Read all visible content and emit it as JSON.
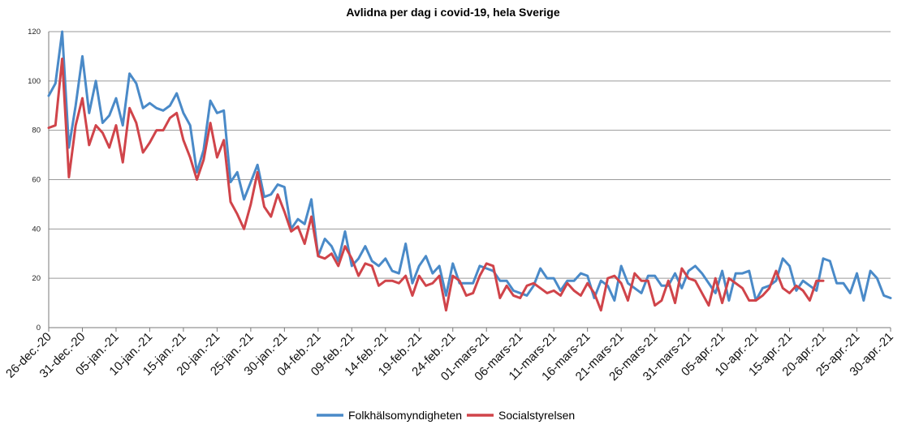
{
  "chart_data": {
    "type": "line",
    "title": "Avlidna per dag i covid-19, hela Sverige",
    "ylim": [
      0,
      120
    ],
    "yticks": [
      0,
      20,
      40,
      60,
      80,
      100,
      120
    ],
    "grid": true,
    "legend_position": "bottom",
    "x_start": "2020-12-26",
    "xtick_labels": [
      "26-dec.-20",
      "31-dec.-20",
      "05-jan.-21",
      "10-jan.-21",
      "15-jan.-21",
      "20-jan.-21",
      "25-jan.-21",
      "30-jan.-21",
      "04-feb.-21",
      "09-feb.-21",
      "14-feb.-21",
      "19-feb.-21",
      "24-feb.-21",
      "01-mars-21",
      "06-mars-21",
      "11-mars-21",
      "16-mars-21",
      "21-mars-21",
      "26-mars-21",
      "31-mars-21",
      "05-apr.-21",
      "10-apr.-21",
      "15-apr.-21",
      "20-apr.-21",
      "25-apr.-21",
      "30-apr.-21"
    ],
    "series": [
      {
        "name": "Folkhälsomyndigheten",
        "color": "#4a8ac8",
        "values": [
          94,
          99,
          120,
          73,
          90,
          110,
          87,
          100,
          83,
          86,
          93,
          82,
          103,
          99,
          89,
          91,
          89,
          88,
          90,
          95,
          87,
          82,
          63,
          72,
          92,
          87,
          88,
          59,
          63,
          52,
          59,
          66,
          53,
          54,
          58,
          57,
          40,
          44,
          42,
          52,
          29,
          36,
          33,
          27,
          39,
          25,
          28,
          33,
          27,
          25,
          28,
          23,
          22,
          34,
          18,
          25,
          29,
          22,
          25,
          13,
          26,
          18,
          18,
          18,
          25,
          24,
          23,
          19,
          19,
          15,
          14,
          13,
          17,
          24,
          20,
          20,
          15,
          19,
          19,
          22,
          21,
          12,
          19,
          17,
          11,
          25,
          18,
          16,
          14,
          21,
          21,
          17,
          17,
          22,
          16,
          23,
          25,
          22,
          18,
          14,
          23,
          11,
          22,
          22,
          23,
          11,
          16,
          17,
          19,
          28,
          25,
          15,
          19,
          17,
          15,
          28,
          27,
          18,
          18,
          14,
          22,
          11,
          23,
          20,
          13,
          12
        ]
      },
      {
        "name": "Socialstyrelsen",
        "color": "#d0444a",
        "values": [
          81,
          82,
          109,
          61,
          82,
          93,
          74,
          82,
          79,
          73,
          82,
          67,
          89,
          83,
          71,
          75,
          80,
          80,
          85,
          87,
          76,
          69,
          60,
          68,
          83,
          69,
          76,
          51,
          46,
          40,
          50,
          63,
          49,
          45,
          54,
          47,
          39,
          41,
          34,
          45,
          29,
          28,
          30,
          25,
          33,
          28,
          21,
          26,
          25,
          17,
          19,
          19,
          18,
          21,
          13,
          21,
          17,
          18,
          21,
          7,
          21,
          19,
          13,
          14,
          21,
          26,
          25,
          12,
          17,
          13,
          12,
          17,
          18,
          16,
          14,
          15,
          13,
          18,
          15,
          13,
          18,
          14,
          7,
          20,
          21,
          18,
          11,
          22,
          19,
          19,
          9,
          11,
          19,
          10,
          24,
          20,
          19,
          14,
          9,
          20,
          10,
          20,
          18,
          16,
          11,
          11,
          13,
          16,
          23,
          16,
          14,
          17,
          15,
          11,
          19,
          19
        ]
      }
    ]
  }
}
